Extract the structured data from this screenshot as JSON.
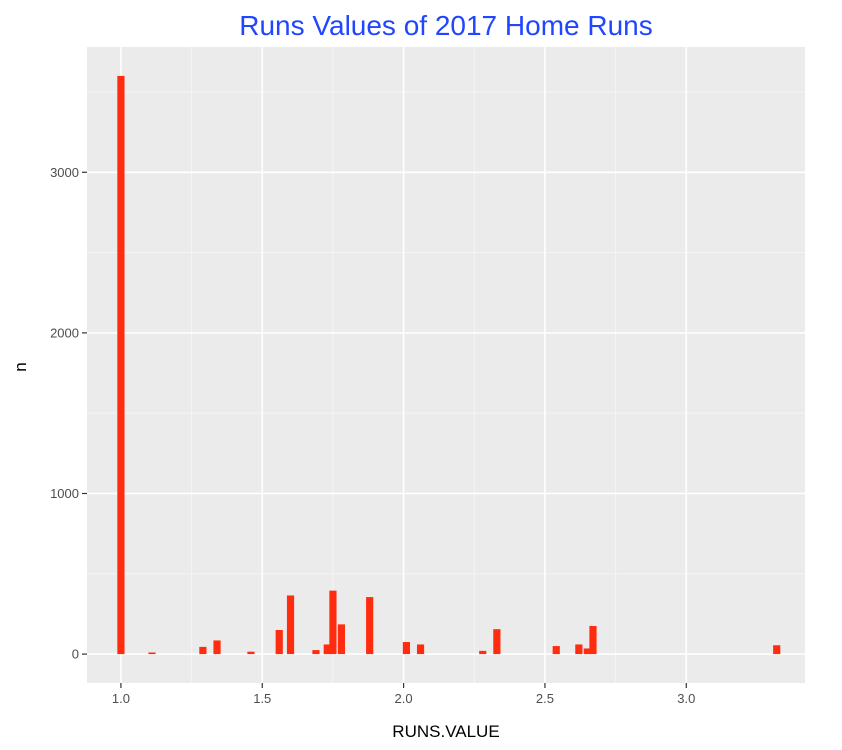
{
  "chart_data": {
    "type": "bar",
    "title": "Runs Values of 2017 Home Runs",
    "xlabel": "RUNS.VALUE",
    "ylabel": "n",
    "xlim": [
      0.88,
      3.42
    ],
    "ylim": [
      -180,
      3780
    ],
    "x_ticks": [
      {
        "value": 1.0,
        "label": "1.0"
      },
      {
        "value": 1.5,
        "label": "1.5"
      },
      {
        "value": 2.0,
        "label": "2.0"
      },
      {
        "value": 2.5,
        "label": "2.5"
      },
      {
        "value": 3.0,
        "label": "3.0"
      }
    ],
    "y_ticks": [
      {
        "value": 0,
        "label": "0"
      },
      {
        "value": 1000,
        "label": "1000"
      },
      {
        "value": 2000,
        "label": "2000"
      },
      {
        "value": 3000,
        "label": "3000"
      }
    ],
    "bin_width": 0.0254,
    "bars": [
      {
        "x": 1.0,
        "n": 3600
      },
      {
        "x": 1.11,
        "n": 10
      },
      {
        "x": 1.29,
        "n": 45
      },
      {
        "x": 1.34,
        "n": 85
      },
      {
        "x": 1.46,
        "n": 15
      },
      {
        "x": 1.56,
        "n": 150
      },
      {
        "x": 1.6,
        "n": 365
      },
      {
        "x": 1.69,
        "n": 25
      },
      {
        "x": 1.73,
        "n": 60
      },
      {
        "x": 1.75,
        "n": 395
      },
      {
        "x": 1.78,
        "n": 185
      },
      {
        "x": 1.88,
        "n": 355
      },
      {
        "x": 2.01,
        "n": 75
      },
      {
        "x": 2.06,
        "n": 60
      },
      {
        "x": 2.28,
        "n": 20
      },
      {
        "x": 2.33,
        "n": 155
      },
      {
        "x": 2.54,
        "n": 50
      },
      {
        "x": 2.62,
        "n": 60
      },
      {
        "x": 2.65,
        "n": 35
      },
      {
        "x": 2.67,
        "n": 175
      },
      {
        "x": 3.32,
        "n": 55
      }
    ],
    "colors": {
      "bar_fill": "#ff2c0f",
      "panel_background": "#ebebeb",
      "grid_major": "#ffffff",
      "grid_minor": "#f5f5f5",
      "title": "#2046ff",
      "tick_text": "#4d4d4d",
      "tick_mark": "#333333"
    },
    "grid": true,
    "legend": "none"
  }
}
